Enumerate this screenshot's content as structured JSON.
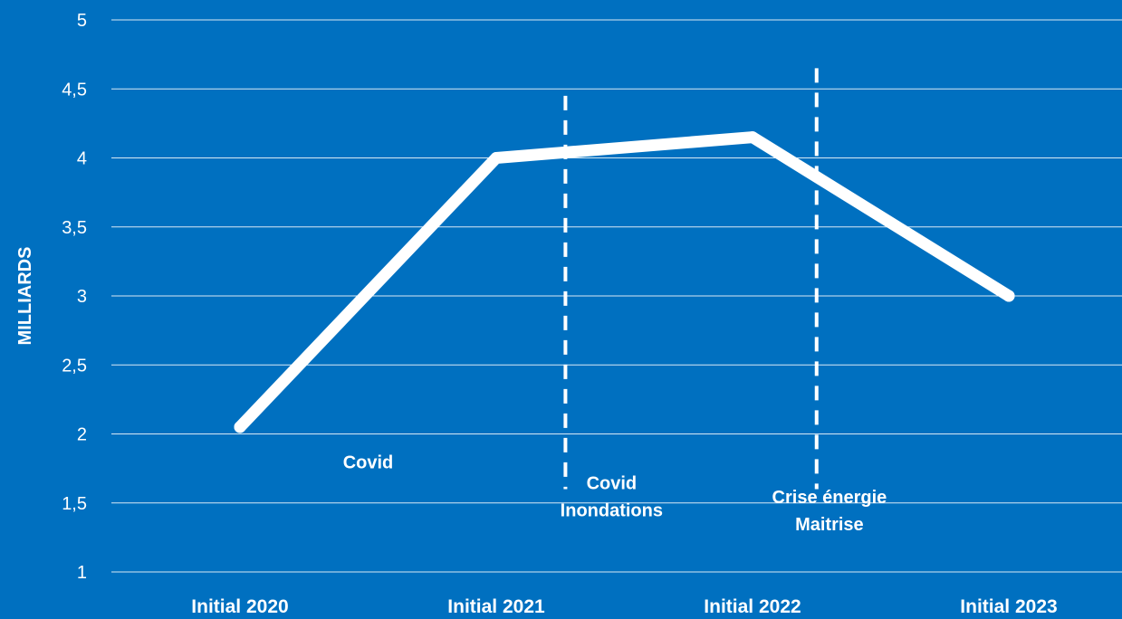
{
  "chart_data": {
    "type": "line",
    "background_color": "#0070c0",
    "line_color": "#ffffff",
    "ylabel": "MILLIARDS",
    "ylim": [
      1,
      5
    ],
    "yticks": [
      "1",
      "1,5",
      "2",
      "2,5",
      "3",
      "3,5",
      "4",
      "4,5",
      "5"
    ],
    "grid": true,
    "categories": [
      "Initial 2020",
      "Initial 2021",
      "Initial 2022",
      "Initial 2023"
    ],
    "series": [
      {
        "values": [
          2.05,
          4.0,
          4.15,
          3.0
        ]
      }
    ],
    "annotations": [
      {
        "lines": [
          "Covid"
        ],
        "x": 0.5,
        "y": 1.75
      },
      {
        "lines": [
          "Covid",
          "Inondations"
        ],
        "x": 1.45,
        "y": 1.6
      },
      {
        "lines": [
          "Crise énergie",
          "Maitrise"
        ],
        "x": 2.3,
        "y": 1.5
      }
    ],
    "reference_lines": [
      {
        "x": 1.27,
        "y_from": 1.6,
        "y_to": 4.45,
        "style": "dashed"
      },
      {
        "x": 2.25,
        "y_from": 1.6,
        "y_to": 4.65,
        "style": "dashed"
      }
    ]
  }
}
